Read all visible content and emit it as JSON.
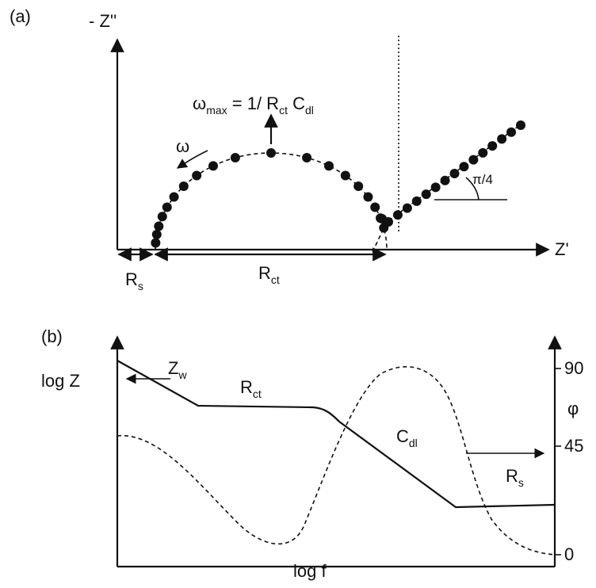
{
  "panel_a": {
    "label": [
      {
        "text": "(a)"
      }
    ],
    "y_axis_label": [
      {
        "text": "- Z''"
      }
    ],
    "x_axis_label": [
      {
        "text": "Z'"
      }
    ],
    "omega_max": [
      {
        "text": "ω"
      },
      {
        "sub": "max"
      },
      {
        "text": " = 1/ R"
      },
      {
        "sub": "ct"
      },
      {
        "text": " C"
      },
      {
        "sub": "dl"
      }
    ],
    "omega": [
      {
        "text": "ω"
      }
    ],
    "angle": [
      {
        "text": "π/4"
      }
    ],
    "rs": [
      {
        "text": "R"
      },
      {
        "sub": "s"
      }
    ],
    "rct": [
      {
        "text": "R"
      },
      {
        "sub": "ct"
      }
    ]
  },
  "panel_b": {
    "label": [
      {
        "text": "(b)"
      }
    ],
    "left_axis_label": [
      {
        "text": "log Z"
      }
    ],
    "right_axis_label": [
      {
        "text": "φ"
      }
    ],
    "x_axis_label": [
      {
        "text": "log f"
      }
    ],
    "zw": [
      {
        "text": "Z"
      },
      {
        "sub": "w"
      }
    ],
    "rct": [
      {
        "text": "R"
      },
      {
        "sub": "ct"
      }
    ],
    "cdl": [
      {
        "text": "C"
      },
      {
        "sub": "dl"
      }
    ],
    "rs": [
      {
        "text": "R"
      },
      {
        "sub": "s"
      }
    ],
    "tick_90": [
      {
        "text": "90"
      }
    ],
    "tick_45": [
      {
        "text": "45"
      }
    ],
    "tick_0": [
      {
        "text": "0"
      }
    ]
  }
}
